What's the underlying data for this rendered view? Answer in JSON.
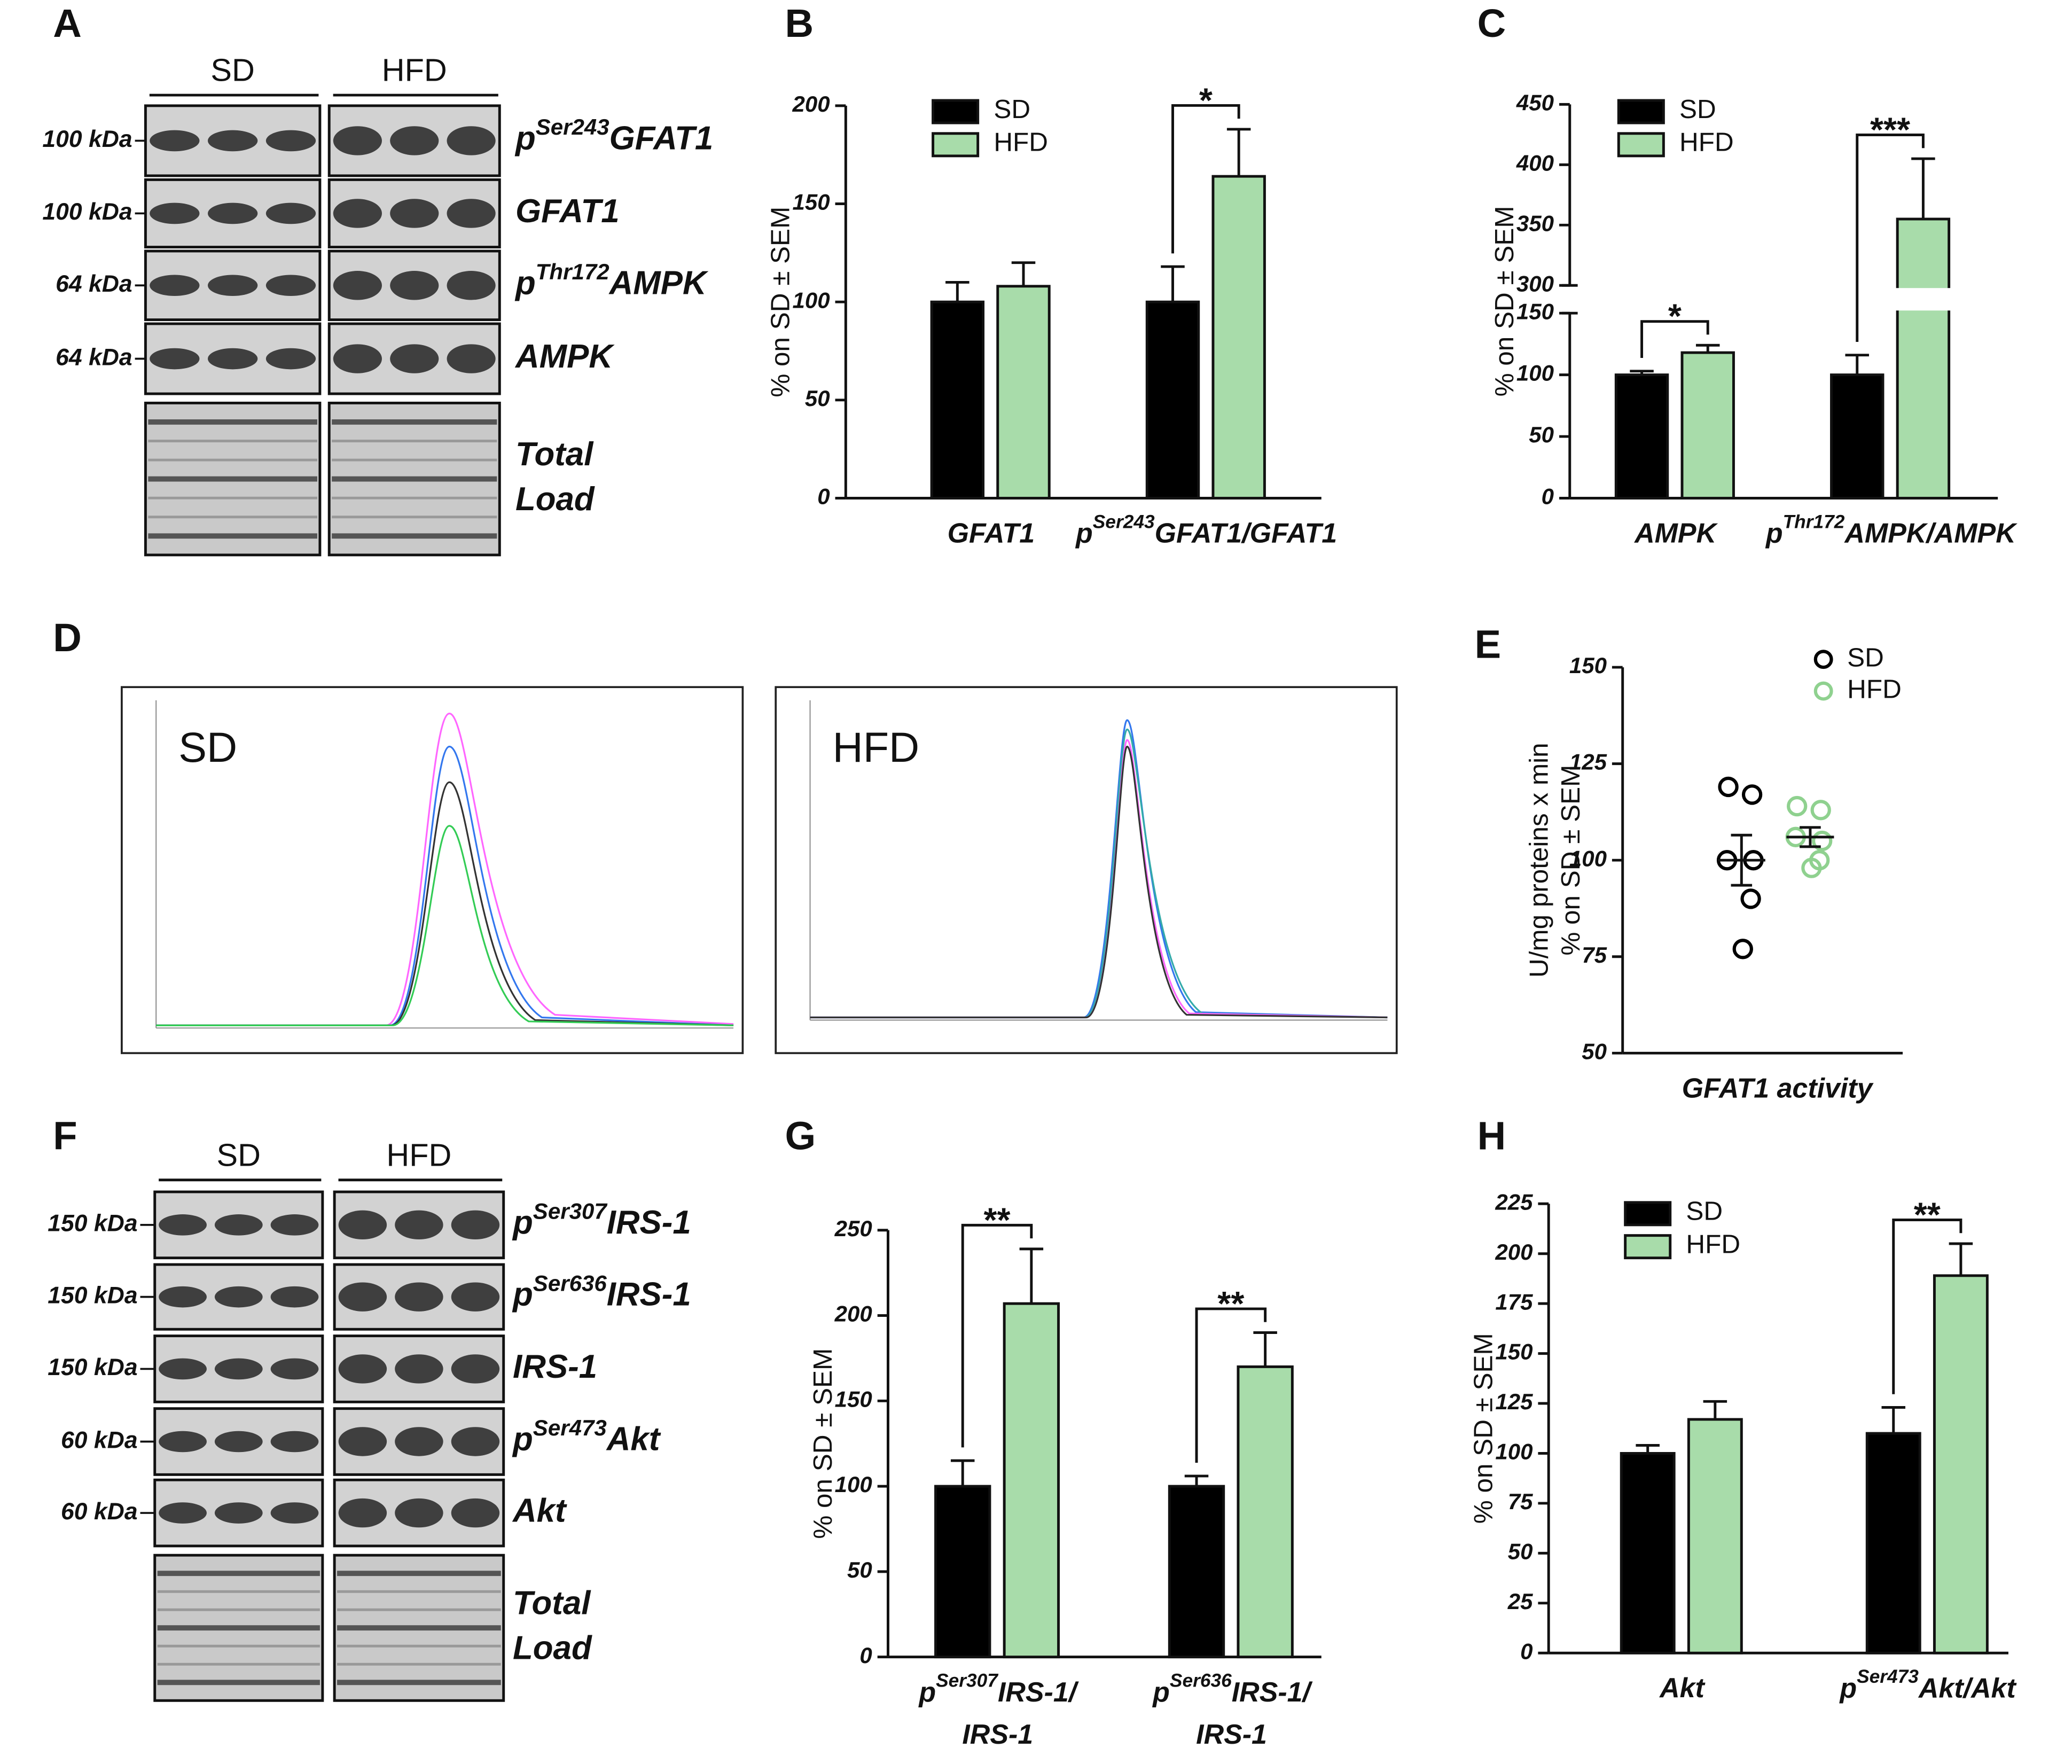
{
  "panel_labels": [
    "A",
    "B",
    "C",
    "D",
    "E",
    "F",
    "G",
    "H"
  ],
  "blot_A": {
    "groups": [
      "SD",
      "HFD"
    ],
    "rows": [
      {
        "kda": "100 kDa",
        "name": [
          "p",
          "Ser243",
          "GFAT1"
        ]
      },
      {
        "kda": "100 kDa",
        "name": "GFAT1"
      },
      {
        "kda": "64 kDa",
        "name": [
          "p",
          "Thr172",
          "AMPK"
        ]
      },
      {
        "kda": "64 kDa",
        "name": "AMPK"
      },
      {
        "name": {
          "lines": [
            "Total",
            "Load"
          ]
        }
      }
    ]
  },
  "chromatograms": {
    "labels": [
      "SD",
      "HFD"
    ]
  },
  "blot_F": {
    "groups": [
      "SD",
      "HFD"
    ],
    "rows": [
      {
        "kda": "150 kDa",
        "name": [
          "p",
          "Ser307",
          "IRS-1"
        ]
      },
      {
        "kda": "150 kDa",
        "name": [
          "p",
          "Ser636",
          "IRS-1"
        ]
      },
      {
        "kda": "150 kDa",
        "name": "IRS-1"
      },
      {
        "kda": "60 kDa",
        "name": [
          "p",
          "Ser473",
          "Akt"
        ]
      },
      {
        "kda": "60 kDa",
        "name": "Akt"
      },
      {
        "name": {
          "lines": [
            "Total",
            "Load"
          ]
        }
      }
    ]
  },
  "chart_data": [
    {
      "type": "bar",
      "ylabel": "% on SD ± SEM",
      "categories": [
        "GFAT1",
        [
          "p",
          "Ser243",
          "GFAT1/GFAT1"
        ]
      ],
      "series": [
        {
          "name": "SD",
          "color": "#000000",
          "values": [
            100,
            100
          ],
          "errors": [
            10,
            18
          ]
        },
        {
          "name": "HFD",
          "color": "#a8dcaa",
          "values": [
            108,
            164
          ],
          "errors": [
            12,
            24
          ]
        }
      ],
      "ylim": [
        0,
        200
      ],
      "yticks": [
        0,
        50,
        100,
        150,
        200
      ],
      "legend": "upper left",
      "significance": [
        {
          "category": 1,
          "label": "*"
        }
      ]
    },
    {
      "type": "bar",
      "ylabel": "% on SD ± SEM",
      "categories": [
        "AMPK",
        [
          "p",
          "Thr172",
          "AMPK/AMPK"
        ]
      ],
      "series": [
        {
          "name": "SD",
          "color": "#000000",
          "values": [
            100,
            100
          ],
          "errors": [
            3,
            16
          ]
        },
        {
          "name": "HFD",
          "color": "#a8dcaa",
          "values": [
            118,
            355
          ],
          "errors": [
            6,
            50
          ]
        }
      ],
      "ylim": [
        0,
        450
      ],
      "axis_break": [
        150,
        300
      ],
      "yticks": [
        0,
        50,
        100,
        150,
        300,
        350,
        400,
        450
      ],
      "legend": "upper left",
      "significance": [
        {
          "category": 0,
          "label": "*"
        },
        {
          "category": 1,
          "label": "***"
        }
      ]
    },
    {
      "type": "scatter",
      "ylabel": [
        "U/mg proteins x min",
        "% on SD ± SEM"
      ],
      "categories": [
        "GFAT1 activity"
      ],
      "series": [
        {
          "name": "SD",
          "color": "#000000",
          "values": [
            119,
            117,
            100,
            100,
            90,
            77
          ],
          "mean": 100,
          "sem": 6.5
        },
        {
          "name": "HFD",
          "color": "#8fd18f",
          "values": [
            114,
            113,
            106,
            105,
            100,
            98
          ],
          "mean": 106,
          "sem": 2.5
        }
      ],
      "ylim": [
        50,
        150
      ],
      "yticks": [
        50,
        75,
        100,
        125,
        150
      ],
      "legend": "upper right"
    },
    {
      "type": "bar",
      "ylabel": "% on SD ± SEM",
      "categories": [
        {
          "lines": [
            [
              "p",
              "Ser307",
              "IRS-1/"
            ],
            "IRS-1"
          ]
        },
        {
          "lines": [
            [
              "p",
              "Ser636",
              "IRS-1/"
            ],
            "IRS-1"
          ]
        }
      ],
      "series": [
        {
          "color": "#000000",
          "values": [
            100,
            100
          ],
          "errors": [
            15,
            6
          ]
        },
        {
          "color": "#a8dcaa",
          "values": [
            207,
            170
          ],
          "errors": [
            32,
            20
          ]
        }
      ],
      "ylim": [
        0,
        250
      ],
      "yticks": [
        0,
        50,
        100,
        150,
        200,
        250
      ],
      "significance": [
        {
          "category": 0,
          "label": "**"
        },
        {
          "category": 1,
          "label": "**"
        }
      ]
    },
    {
      "type": "bar",
      "ylabel": "% on SD ± SEM",
      "categories": [
        "Akt",
        [
          "p",
          "Ser473",
          "Akt/Akt"
        ]
      ],
      "series": [
        {
          "name": "SD",
          "color": "#000000",
          "values": [
            100,
            110
          ],
          "errors": [
            4,
            13
          ]
        },
        {
          "name": "HFD",
          "color": "#a8dcaa",
          "values": [
            117,
            189
          ],
          "errors": [
            9,
            16
          ]
        }
      ],
      "ylim": [
        0,
        225
      ],
      "yticks": [
        0,
        25,
        50,
        75,
        100,
        125,
        150,
        175,
        200,
        225
      ],
      "legend": "upper left",
      "significance": [
        {
          "category": 1,
          "label": "**"
        }
      ]
    }
  ]
}
